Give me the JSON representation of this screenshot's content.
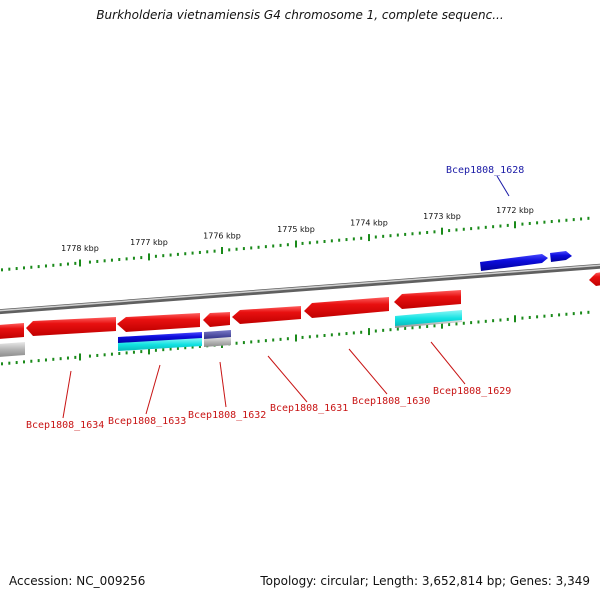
{
  "header": {
    "title": "Burkholderia vietnamiensis G4 chromosome 1, complete sequenc..."
  },
  "footer": {
    "accession": "Accession: NC_009256",
    "topology": "Topology: circular; Length: 3,652,814 bp; Genes: 3,349"
  },
  "colors": {
    "forward_gene": "#0a0ad2",
    "reverse_gene": "#e00808",
    "cyan_track": "#12e2e2",
    "grey_track": "#b4b4b4",
    "backbone": "#7c7c7c",
    "tick": "#1a8a1a",
    "label_forward": "#1a1aa6",
    "label_reverse": "#c81414"
  },
  "ticks": [
    {
      "label": "1778 kbp"
    },
    {
      "label": "1777 kbp"
    },
    {
      "label": "1776 kbp"
    },
    {
      "label": "1775 kbp"
    },
    {
      "label": "1774 kbp"
    },
    {
      "label": "1773 kbp"
    },
    {
      "label": "1772 kbp"
    }
  ],
  "genes": [
    {
      "label": "Bcep1808_1628",
      "strand": "forward"
    },
    {
      "label": "Bcep1808_1629",
      "strand": "reverse"
    },
    {
      "label": "Bcep1808_1630",
      "strand": "reverse"
    },
    {
      "label": "Bcep1808_1631",
      "strand": "reverse"
    },
    {
      "label": "Bcep1808_1632",
      "strand": "reverse"
    },
    {
      "label": "Bcep1808_1633",
      "strand": "reverse"
    },
    {
      "label": "Bcep1808_1634",
      "strand": "reverse"
    }
  ]
}
